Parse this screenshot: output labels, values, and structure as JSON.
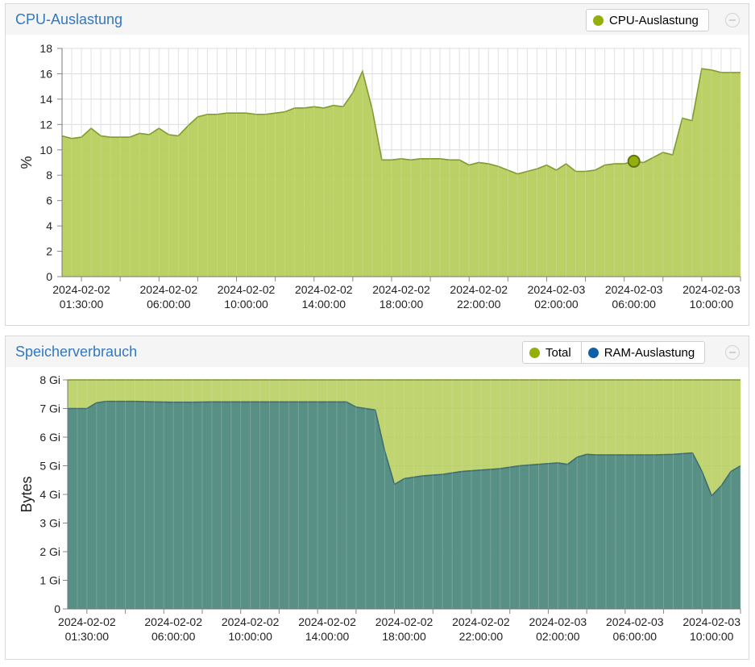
{
  "panels": [
    {
      "title": "CPU-Auslastung",
      "legend": [
        {
          "label": "CPU-Auslastung",
          "color": "#94ae0a"
        }
      ]
    },
    {
      "title": "Speicherverbrauch",
      "legend": [
        {
          "label": "Total",
          "color": "#94ae0a"
        },
        {
          "label": "RAM-Auslastung",
          "color": "#115fa6"
        }
      ]
    }
  ],
  "chart_data": [
    {
      "type": "area",
      "title": "CPU-Auslastung",
      "ylabel": "%",
      "ylim": [
        0,
        18
      ],
      "yticks": [
        "0",
        "2",
        "4",
        "6",
        "8",
        "10",
        "12",
        "14",
        "16",
        "18"
      ],
      "xlim": [
        "2024-02-02 00:30:00",
        "2024-02-03 11:30:00"
      ],
      "xticks": [
        {
          "t": "2024-02-02 01:30:00",
          "label": [
            "2024-02-02",
            "01:30:00"
          ]
        },
        {
          "t": "2024-02-02 06:00:00",
          "label": [
            "2024-02-02",
            "06:00:00"
          ]
        },
        {
          "t": "2024-02-02 10:00:00",
          "label": [
            "2024-02-02",
            "10:00:00"
          ]
        },
        {
          "t": "2024-02-02 14:00:00",
          "label": [
            "2024-02-02",
            "14:00:00"
          ]
        },
        {
          "t": "2024-02-02 18:00:00",
          "label": [
            "2024-02-02",
            "18:00:00"
          ]
        },
        {
          "t": "2024-02-02 22:00:00",
          "label": [
            "2024-02-02",
            "22:00:00"
          ]
        },
        {
          "t": "2024-02-03 02:00:00",
          "label": [
            "2024-02-03",
            "02:00:00"
          ]
        },
        {
          "t": "2024-02-03 06:00:00",
          "label": [
            "2024-02-03",
            "06:00:00"
          ]
        },
        {
          "t": "2024-02-03 10:00:00",
          "label": [
            "2024-02-03",
            "10:00:00"
          ]
        }
      ],
      "highlight_index": 59,
      "series": [
        {
          "name": "CPU-Auslastung",
          "color": "#94ae0a",
          "x": [
            "2024-02-02 00:30:00",
            "2024-02-02 01:00:00",
            "2024-02-02 01:30:00",
            "2024-02-02 02:00:00",
            "2024-02-02 02:30:00",
            "2024-02-02 03:00:00",
            "2024-02-02 03:30:00",
            "2024-02-02 04:00:00",
            "2024-02-02 04:30:00",
            "2024-02-02 05:00:00",
            "2024-02-02 05:30:00",
            "2024-02-02 06:00:00",
            "2024-02-02 06:30:00",
            "2024-02-02 07:00:00",
            "2024-02-02 07:30:00",
            "2024-02-02 08:00:00",
            "2024-02-02 08:30:00",
            "2024-02-02 09:00:00",
            "2024-02-02 09:30:00",
            "2024-02-02 10:00:00",
            "2024-02-02 10:30:00",
            "2024-02-02 11:00:00",
            "2024-02-02 11:30:00",
            "2024-02-02 12:00:00",
            "2024-02-02 12:30:00",
            "2024-02-02 13:00:00",
            "2024-02-02 13:30:00",
            "2024-02-02 14:00:00",
            "2024-02-02 14:30:00",
            "2024-02-02 15:00:00",
            "2024-02-02 15:30:00",
            "2024-02-02 16:00:00",
            "2024-02-02 16:30:00",
            "2024-02-02 17:00:00",
            "2024-02-02 17:30:00",
            "2024-02-02 18:00:00",
            "2024-02-02 18:30:00",
            "2024-02-02 19:00:00",
            "2024-02-02 19:30:00",
            "2024-02-02 20:00:00",
            "2024-02-02 20:30:00",
            "2024-02-02 21:00:00",
            "2024-02-02 21:30:00",
            "2024-02-02 22:00:00",
            "2024-02-02 22:30:00",
            "2024-02-02 23:00:00",
            "2024-02-02 23:30:00",
            "2024-02-03 00:00:00",
            "2024-02-03 00:30:00",
            "2024-02-03 01:00:00",
            "2024-02-03 01:30:00",
            "2024-02-03 02:00:00",
            "2024-02-03 02:30:00",
            "2024-02-03 03:00:00",
            "2024-02-03 03:30:00",
            "2024-02-03 04:00:00",
            "2024-02-03 04:30:00",
            "2024-02-03 05:00:00",
            "2024-02-03 05:30:00",
            "2024-02-03 06:00:00",
            "2024-02-03 06:30:00",
            "2024-02-03 07:00:00",
            "2024-02-03 07:30:00",
            "2024-02-03 08:00:00",
            "2024-02-03 08:30:00",
            "2024-02-03 09:00:00",
            "2024-02-03 09:30:00",
            "2024-02-03 10:00:00",
            "2024-02-03 10:30:00",
            "2024-02-03 11:00:00",
            "2024-02-03 11:30:00"
          ],
          "values": [
            11.1,
            10.9,
            11.0,
            11.7,
            11.1,
            11.0,
            11.0,
            11.0,
            11.3,
            11.2,
            11.7,
            11.2,
            11.1,
            11.9,
            12.6,
            12.8,
            12.8,
            12.9,
            12.9,
            12.9,
            12.8,
            12.8,
            12.9,
            13.0,
            13.3,
            13.3,
            13.4,
            13.3,
            13.5,
            13.4,
            14.5,
            16.2,
            13.2,
            9.2,
            9.2,
            9.3,
            9.2,
            9.3,
            9.3,
            9.3,
            9.2,
            9.2,
            8.8,
            9.0,
            8.9,
            8.7,
            8.4,
            8.1,
            8.3,
            8.5,
            8.8,
            8.4,
            8.9,
            8.3,
            8.3,
            8.4,
            8.8,
            8.9,
            8.9,
            9.1,
            9.0,
            9.4,
            9.8,
            9.6,
            12.5,
            12.3,
            16.4,
            16.3,
            16.1,
            16.1,
            16.1
          ]
        }
      ]
    },
    {
      "type": "area",
      "title": "Speicherverbrauch",
      "ylabel": "Bytes",
      "ylim": [
        0,
        8
      ],
      "yticks": [
        "0",
        "1 Gi",
        "2 Gi",
        "3 Gi",
        "4 Gi",
        "5 Gi",
        "6 Gi",
        "7 Gi",
        "8 Gi"
      ],
      "xlim": [
        "2024-02-02 00:30:00",
        "2024-02-03 11:30:00"
      ],
      "xticks": [
        {
          "t": "2024-02-02 01:30:00",
          "label": [
            "2024-02-02",
            "01:30:00"
          ]
        },
        {
          "t": "2024-02-02 06:00:00",
          "label": [
            "2024-02-02",
            "06:00:00"
          ]
        },
        {
          "t": "2024-02-02 10:00:00",
          "label": [
            "2024-02-02",
            "10:00:00"
          ]
        },
        {
          "t": "2024-02-02 14:00:00",
          "label": [
            "2024-02-02",
            "14:00:00"
          ]
        },
        {
          "t": "2024-02-02 18:00:00",
          "label": [
            "2024-02-02",
            "18:00:00"
          ]
        },
        {
          "t": "2024-02-02 22:00:00",
          "label": [
            "2024-02-02",
            "22:00:00"
          ]
        },
        {
          "t": "2024-02-03 02:00:00",
          "label": [
            "2024-02-03",
            "02:00:00"
          ]
        },
        {
          "t": "2024-02-03 06:00:00",
          "label": [
            "2024-02-03",
            "06:00:00"
          ]
        },
        {
          "t": "2024-02-03 10:00:00",
          "label": [
            "2024-02-03",
            "10:00:00"
          ]
        }
      ],
      "series": [
        {
          "name": "Total",
          "color": "#94ae0a",
          "x": [
            "2024-02-02 00:30:00",
            "2024-02-03 11:30:00"
          ],
          "values": [
            8,
            8
          ]
        },
        {
          "name": "RAM-Auslastung",
          "color": "#115fa6",
          "x": [
            "2024-02-02 00:30:00",
            "2024-02-02 01:00:00",
            "2024-02-02 01:30:00",
            "2024-02-02 02:00:00",
            "2024-02-02 02:30:00",
            "2024-02-02 03:00:00",
            "2024-02-02 04:00:00",
            "2024-02-02 05:00:00",
            "2024-02-02 06:00:00",
            "2024-02-02 07:00:00",
            "2024-02-02 08:00:00",
            "2024-02-02 10:00:00",
            "2024-02-02 12:00:00",
            "2024-02-02 14:00:00",
            "2024-02-02 15:00:00",
            "2024-02-02 15:30:00",
            "2024-02-02 16:30:00",
            "2024-02-02 17:00:00",
            "2024-02-02 17:30:00",
            "2024-02-02 18:00:00",
            "2024-02-02 18:30:00",
            "2024-02-02 19:00:00",
            "2024-02-02 20:00:00",
            "2024-02-02 21:00:00",
            "2024-02-02 22:00:00",
            "2024-02-02 23:00:00",
            "2024-02-03 00:00:00",
            "2024-02-03 01:00:00",
            "2024-02-03 02:00:00",
            "2024-02-03 02:30:00",
            "2024-02-03 03:00:00",
            "2024-02-03 03:30:00",
            "2024-02-03 04:00:00",
            "2024-02-03 05:00:00",
            "2024-02-03 06:00:00",
            "2024-02-03 07:00:00",
            "2024-02-03 08:00:00",
            "2024-02-03 09:00:00",
            "2024-02-03 09:30:00",
            "2024-02-03 10:00:00",
            "2024-02-03 10:30:00",
            "2024-02-03 11:00:00",
            "2024-02-03 11:30:00"
          ],
          "values": [
            7.0,
            7.0,
            7.0,
            7.2,
            7.25,
            7.25,
            7.25,
            7.23,
            7.22,
            7.22,
            7.23,
            7.23,
            7.23,
            7.23,
            7.23,
            7.05,
            6.95,
            5.5,
            4.35,
            4.55,
            4.6,
            4.65,
            4.7,
            4.8,
            4.85,
            4.9,
            5.0,
            5.05,
            5.1,
            5.05,
            5.3,
            5.4,
            5.38,
            5.38,
            5.38,
            5.38,
            5.4,
            5.45,
            4.8,
            3.95,
            4.3,
            4.8,
            5.0
          ]
        }
      ]
    }
  ]
}
